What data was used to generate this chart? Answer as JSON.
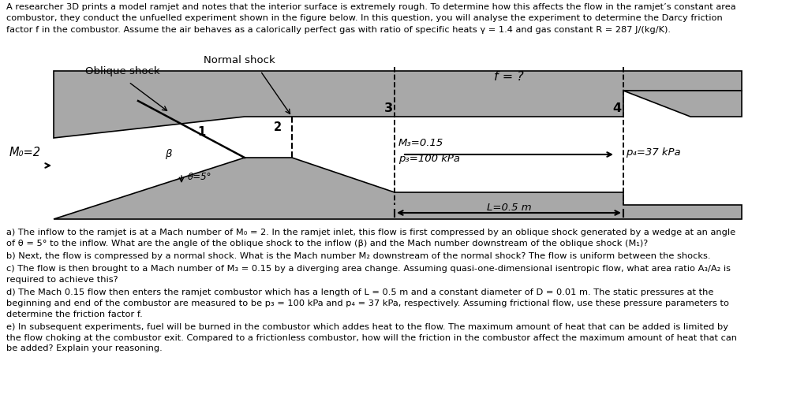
{
  "background_color": "#ffffff",
  "intro_text": "A researcher 3D prints a model ramjet and notes that the interior surface is extremely rough. To determine how this affects the flow in the ramjet’s constant area\ncombustor, they conduct the unfuelled experiment shown in the figure below. In this question, you will analyse the experiment to determine the Darcy friction\nfactor f in the combustor. Assume the air behaves as a calorically perfect gas with ratio of specific heats γ = 1.4 and gas constant R = 287 J/(kg/K).",
  "normal_shock_label": "Normal shock",
  "oblique_shock_label": "Oblique shock",
  "M0_label": "M₀=2",
  "beta_label": "β",
  "theta_label": "θ=5°",
  "f_label": "f = ?",
  "M3_label": "M₃=0.15",
  "p3_label": "p₃=100 kPa",
  "p4_label": "p₄=37 kPa",
  "L_label": "L=0.5 m",
  "qa_text": "a) The inflow to the ramjet is at a Mach number of M₀ = 2. In the ramjet inlet, this flow is first compressed by an oblique shock generated by a wedge at an angle\nof θ = 5° to the inflow. What are the angle of the oblique shock to the inflow (β) and the Mach number downstream of the oblique shock (M₁)?",
  "qb_text": "b) Next, the flow is compressed by a normal shock. What is the Mach number M₂ downstream of the normal shock? The flow is uniform between the shocks.",
  "qc_text": "c) The flow is then brought to a Mach number of M₃ = 0.15 by a diverging area change. Assuming quasi-one-dimensional isentropic flow, what area ratio A₃/A₂ is\nrequired to achieve this?",
  "qd_text": "d) The Mach 0.15 flow then enters the ramjet combustor which has a length of L = 0.5 m and a constant diameter of D = 0.01 m. The static pressures at the\nbeginning and end of the combustor are measured to be p₃ = 100 kPa and p₄ = 37 kPa, respectively. Assuming frictional flow, use these pressure parameters to\ndetermine the friction factor f.",
  "qe_text": "e) In subsequent experiments, fuel will be burned in the combustor which addes heat to the flow. The maximum amount of heat that can be added is limited by\nthe flow choking at the combustor exit. Compared to a frictionless combustor, how will the friction in the combustor affect the maximum amount of heat that can\nbe added? Explain your reasoning.",
  "gray_wall": "#a8a8a8",
  "gray_ramp": "#a8a8a8",
  "gray_nozzle": "#a8a8a8"
}
